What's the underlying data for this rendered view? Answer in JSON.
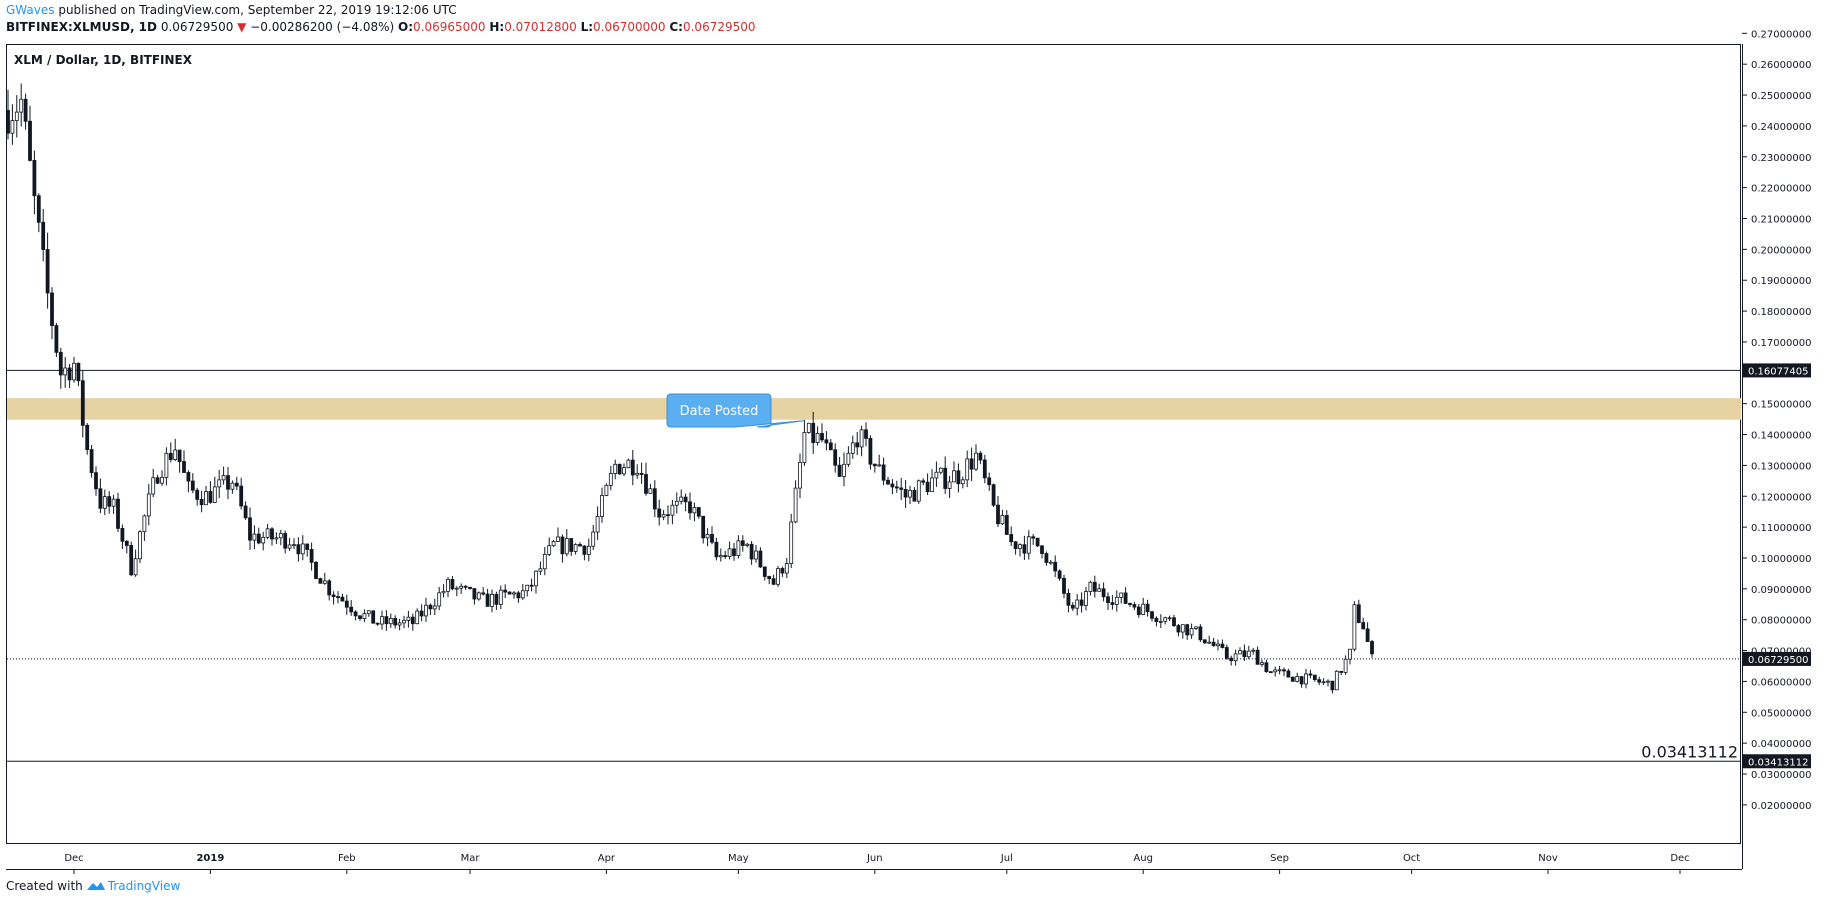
{
  "header": {
    "author": "GWaves",
    "published_text": "published on TradingView.com, September 22, 2019 19:12:06 UTC",
    "symbol": "BITFINEX:XLMUSD, 1D",
    "last": "0.06729500",
    "change_arrow": "▼",
    "change": "−0.00286200 (−4.08%)",
    "o_label": "O:",
    "o_value": "0.06965000",
    "h_label": "H:",
    "h_value": "0.07012800",
    "l_label": "L:",
    "l_value": "0.06700000",
    "c_label": "C:",
    "c_value": "0.06729500"
  },
  "footer": {
    "created_with": "Created with",
    "brand": "TradingView"
  },
  "chart_data": {
    "type": "candlestick",
    "title": "XLM / Dollar, 1D, BITFINEX",
    "ylim": [
      0.015,
      0.274
    ],
    "y_ticks": [
      0.02,
      0.03,
      0.04,
      0.05,
      0.06,
      0.07,
      0.08,
      0.09,
      0.1,
      0.11,
      0.12,
      0.13,
      0.14,
      0.15,
      0.16,
      0.17,
      0.18,
      0.19,
      0.2,
      0.21,
      0.22,
      0.23,
      0.24,
      0.25,
      0.26,
      0.27
    ],
    "y_tick_labels": [
      "0.02000000",
      "0.03000000",
      "0.04000000",
      "0.05000000",
      "0.06000000",
      "0.07000000",
      "0.08000000",
      "0.09000000",
      "0.10000000",
      "0.11000000",
      "0.12000000",
      "0.13000000",
      "0.14000000",
      "0.15000000",
      "0.16000000",
      "0.17000000",
      "0.18000000",
      "0.19000000",
      "0.20000000",
      "0.21000000",
      "0.22000000",
      "0.23000000",
      "0.24000000",
      "0.25000000",
      "0.26000000",
      "0.27000000"
    ],
    "x_start": "2018-11-16",
    "x_end": "2019-12-23",
    "x_ticks": [
      {
        "label": "Dec",
        "date": "2018-12-01",
        "bold": false
      },
      {
        "label": "2019",
        "date": "2019-01-01",
        "bold": true
      },
      {
        "label": "Feb",
        "date": "2019-02-01",
        "bold": false
      },
      {
        "label": "Mar",
        "date": "2019-03-01",
        "bold": false
      },
      {
        "label": "Apr",
        "date": "2019-04-01",
        "bold": false
      },
      {
        "label": "May",
        "date": "2019-05-01",
        "bold": false
      },
      {
        "label": "Jun",
        "date": "2019-06-01",
        "bold": false
      },
      {
        "label": "Jul",
        "date": "2019-07-01",
        "bold": false
      },
      {
        "label": "Aug",
        "date": "2019-08-01",
        "bold": false
      },
      {
        "label": "Sep",
        "date": "2019-09-01",
        "bold": false
      },
      {
        "label": "Oct",
        "date": "2019-10-01",
        "bold": false
      },
      {
        "label": "Nov",
        "date": "2019-11-01",
        "bold": false
      },
      {
        "label": "Dec",
        "date": "2019-12-01",
        "bold": false
      }
    ],
    "price_path": [
      {
        "date": "2018-11-16",
        "close": 0.245
      },
      {
        "date": "2018-11-19",
        "close": 0.248
      },
      {
        "date": "2018-11-22",
        "close": 0.215
      },
      {
        "date": "2018-11-25",
        "close": 0.185
      },
      {
        "date": "2018-11-28",
        "close": 0.16
      },
      {
        "date": "2018-12-01",
        "close": 0.163
      },
      {
        "date": "2018-12-04",
        "close": 0.135
      },
      {
        "date": "2018-12-07",
        "close": 0.118
      },
      {
        "date": "2018-12-10",
        "close": 0.116
      },
      {
        "date": "2018-12-14",
        "close": 0.097
      },
      {
        "date": "2018-12-17",
        "close": 0.113
      },
      {
        "date": "2018-12-20",
        "close": 0.128
      },
      {
        "date": "2018-12-24",
        "close": 0.136
      },
      {
        "date": "2018-12-27",
        "close": 0.122
      },
      {
        "date": "2018-12-31",
        "close": 0.12
      },
      {
        "date": "2019-01-06",
        "close": 0.125
      },
      {
        "date": "2019-01-10",
        "close": 0.107
      },
      {
        "date": "2019-01-20",
        "close": 0.106
      },
      {
        "date": "2019-01-28",
        "close": 0.09
      },
      {
        "date": "2019-02-04",
        "close": 0.082
      },
      {
        "date": "2019-02-08",
        "close": 0.079
      },
      {
        "date": "2019-02-16",
        "close": 0.079
      },
      {
        "date": "2019-02-24",
        "close": 0.091
      },
      {
        "date": "2019-03-04",
        "close": 0.086
      },
      {
        "date": "2019-03-14",
        "close": 0.089
      },
      {
        "date": "2019-03-20",
        "close": 0.104
      },
      {
        "date": "2019-03-28",
        "close": 0.104
      },
      {
        "date": "2019-04-03",
        "close": 0.13
      },
      {
        "date": "2019-04-08",
        "close": 0.131
      },
      {
        "date": "2019-04-13",
        "close": 0.115
      },
      {
        "date": "2019-04-20",
        "close": 0.117
      },
      {
        "date": "2019-04-26",
        "close": 0.1
      },
      {
        "date": "2019-05-03",
        "close": 0.104
      },
      {
        "date": "2019-05-09",
        "close": 0.092
      },
      {
        "date": "2019-05-12",
        "close": 0.1
      },
      {
        "date": "2019-05-14",
        "close": 0.12
      },
      {
        "date": "2019-05-16",
        "close": 0.14
      },
      {
        "date": "2019-05-20",
        "close": 0.138
      },
      {
        "date": "2019-05-24",
        "close": 0.125
      },
      {
        "date": "2019-05-28",
        "close": 0.14
      },
      {
        "date": "2019-06-02",
        "close": 0.128
      },
      {
        "date": "2019-06-08",
        "close": 0.12
      },
      {
        "date": "2019-06-14",
        "close": 0.125
      },
      {
        "date": "2019-06-20",
        "close": 0.127
      },
      {
        "date": "2019-06-24",
        "close": 0.133
      },
      {
        "date": "2019-06-28",
        "close": 0.116
      },
      {
        "date": "2019-07-02",
        "close": 0.105
      },
      {
        "date": "2019-07-09",
        "close": 0.104
      },
      {
        "date": "2019-07-16",
        "close": 0.082
      },
      {
        "date": "2019-07-20",
        "close": 0.09
      },
      {
        "date": "2019-07-28",
        "close": 0.086
      },
      {
        "date": "2019-08-05",
        "close": 0.081
      },
      {
        "date": "2019-08-14",
        "close": 0.075
      },
      {
        "date": "2019-08-20",
        "close": 0.068
      },
      {
        "date": "2019-08-26",
        "close": 0.069
      },
      {
        "date": "2019-08-30",
        "close": 0.063
      },
      {
        "date": "2019-09-06",
        "close": 0.061
      },
      {
        "date": "2019-09-13",
        "close": 0.059
      },
      {
        "date": "2019-09-17",
        "close": 0.069
      },
      {
        "date": "2019-09-18",
        "close": 0.083
      },
      {
        "date": "2019-09-20",
        "close": 0.078
      },
      {
        "date": "2019-09-22",
        "close": 0.06729
      }
    ],
    "zone": {
      "low": 0.1448,
      "high": 0.1518,
      "color": "#e6d3a3"
    },
    "horizontal_lines": [
      {
        "value": 0.16077405,
        "label": "0.16077405"
      },
      {
        "value": 0.03413112,
        "label": "0.03413112",
        "annotation": "0.03413112"
      }
    ],
    "last_price": {
      "value": 0.067295,
      "label": "0.06729500"
    },
    "callout": {
      "text": "Date Posted",
      "date": "2019-05-16",
      "price": 0.1445,
      "color": "#5aaef2"
    }
  }
}
